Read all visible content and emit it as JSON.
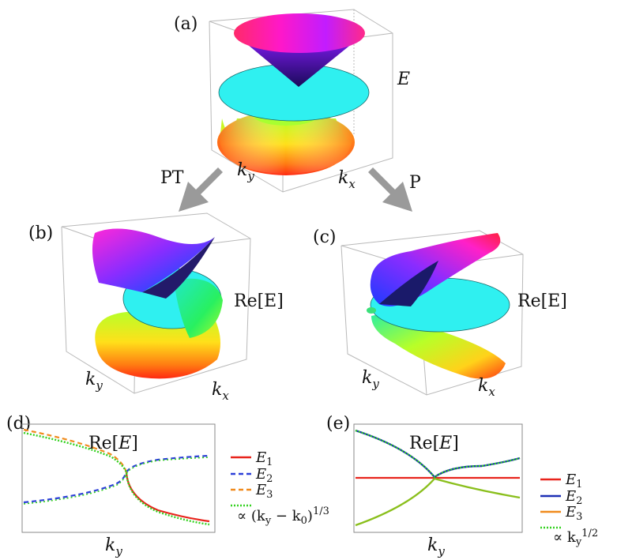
{
  "panels": {
    "a": {
      "label": "(a)",
      "axis_e": "E",
      "axis_ky": "k",
      "axis_ky_sub": "y",
      "axis_kx": "k",
      "axis_kx_sub": "x"
    },
    "b": {
      "label": "(b)",
      "axis_e": "Re[E]",
      "axis_ky": "k",
      "axis_ky_sub": "y",
      "axis_kx": "k",
      "axis_kx_sub": "x"
    },
    "c": {
      "label": "(c)",
      "axis_e": "Re[E]",
      "axis_ky": "k",
      "axis_ky_sub": "y",
      "axis_kx": "k",
      "axis_kx_sub": "x"
    },
    "d": {
      "label": "(d)",
      "title": "Re[E]",
      "xlabel": "k",
      "xlabel_sub": "y",
      "legend": [
        {
          "name": "E",
          "sub": "1",
          "color": "#e8241c",
          "style": "solid"
        },
        {
          "name": "E",
          "sub": "2",
          "color": "#2c3fd8",
          "style": "dashed"
        },
        {
          "name": "E",
          "sub": "3",
          "color": "#f08a1c",
          "style": "dashed"
        },
        {
          "name": "∝ (k",
          "sub": "y",
          "tail": " − k",
          "sub2": "0",
          "tail2": ")",
          "sup": "1/3",
          "color": "#33d11f",
          "style": "dotted"
        }
      ]
    },
    "e": {
      "label": "(e)",
      "title": "Re[E]",
      "xlabel": "k",
      "xlabel_sub": "y",
      "legend": [
        {
          "name": "E",
          "sub": "1",
          "color": "#e8241c",
          "style": "solid"
        },
        {
          "name": "E",
          "sub": "2",
          "color": "#1d2fb5",
          "style": "solid"
        },
        {
          "name": "E",
          "sub": "3",
          "color": "#f08a1c",
          "style": "solid"
        },
        {
          "name": "∝ k",
          "sub": "y",
          "sup": "1/2",
          "color": "#33d11f",
          "style": "dotted"
        }
      ]
    }
  },
  "arrows": {
    "left": "PT",
    "right": "P"
  },
  "colors": {
    "cyan_sheet": "#2ff0f0",
    "arrow": "#9a9a9a",
    "e1": "#e8241c",
    "e2": "#1d2fb5",
    "e3": "#f08a1c",
    "fit": "#33d11f"
  }
}
